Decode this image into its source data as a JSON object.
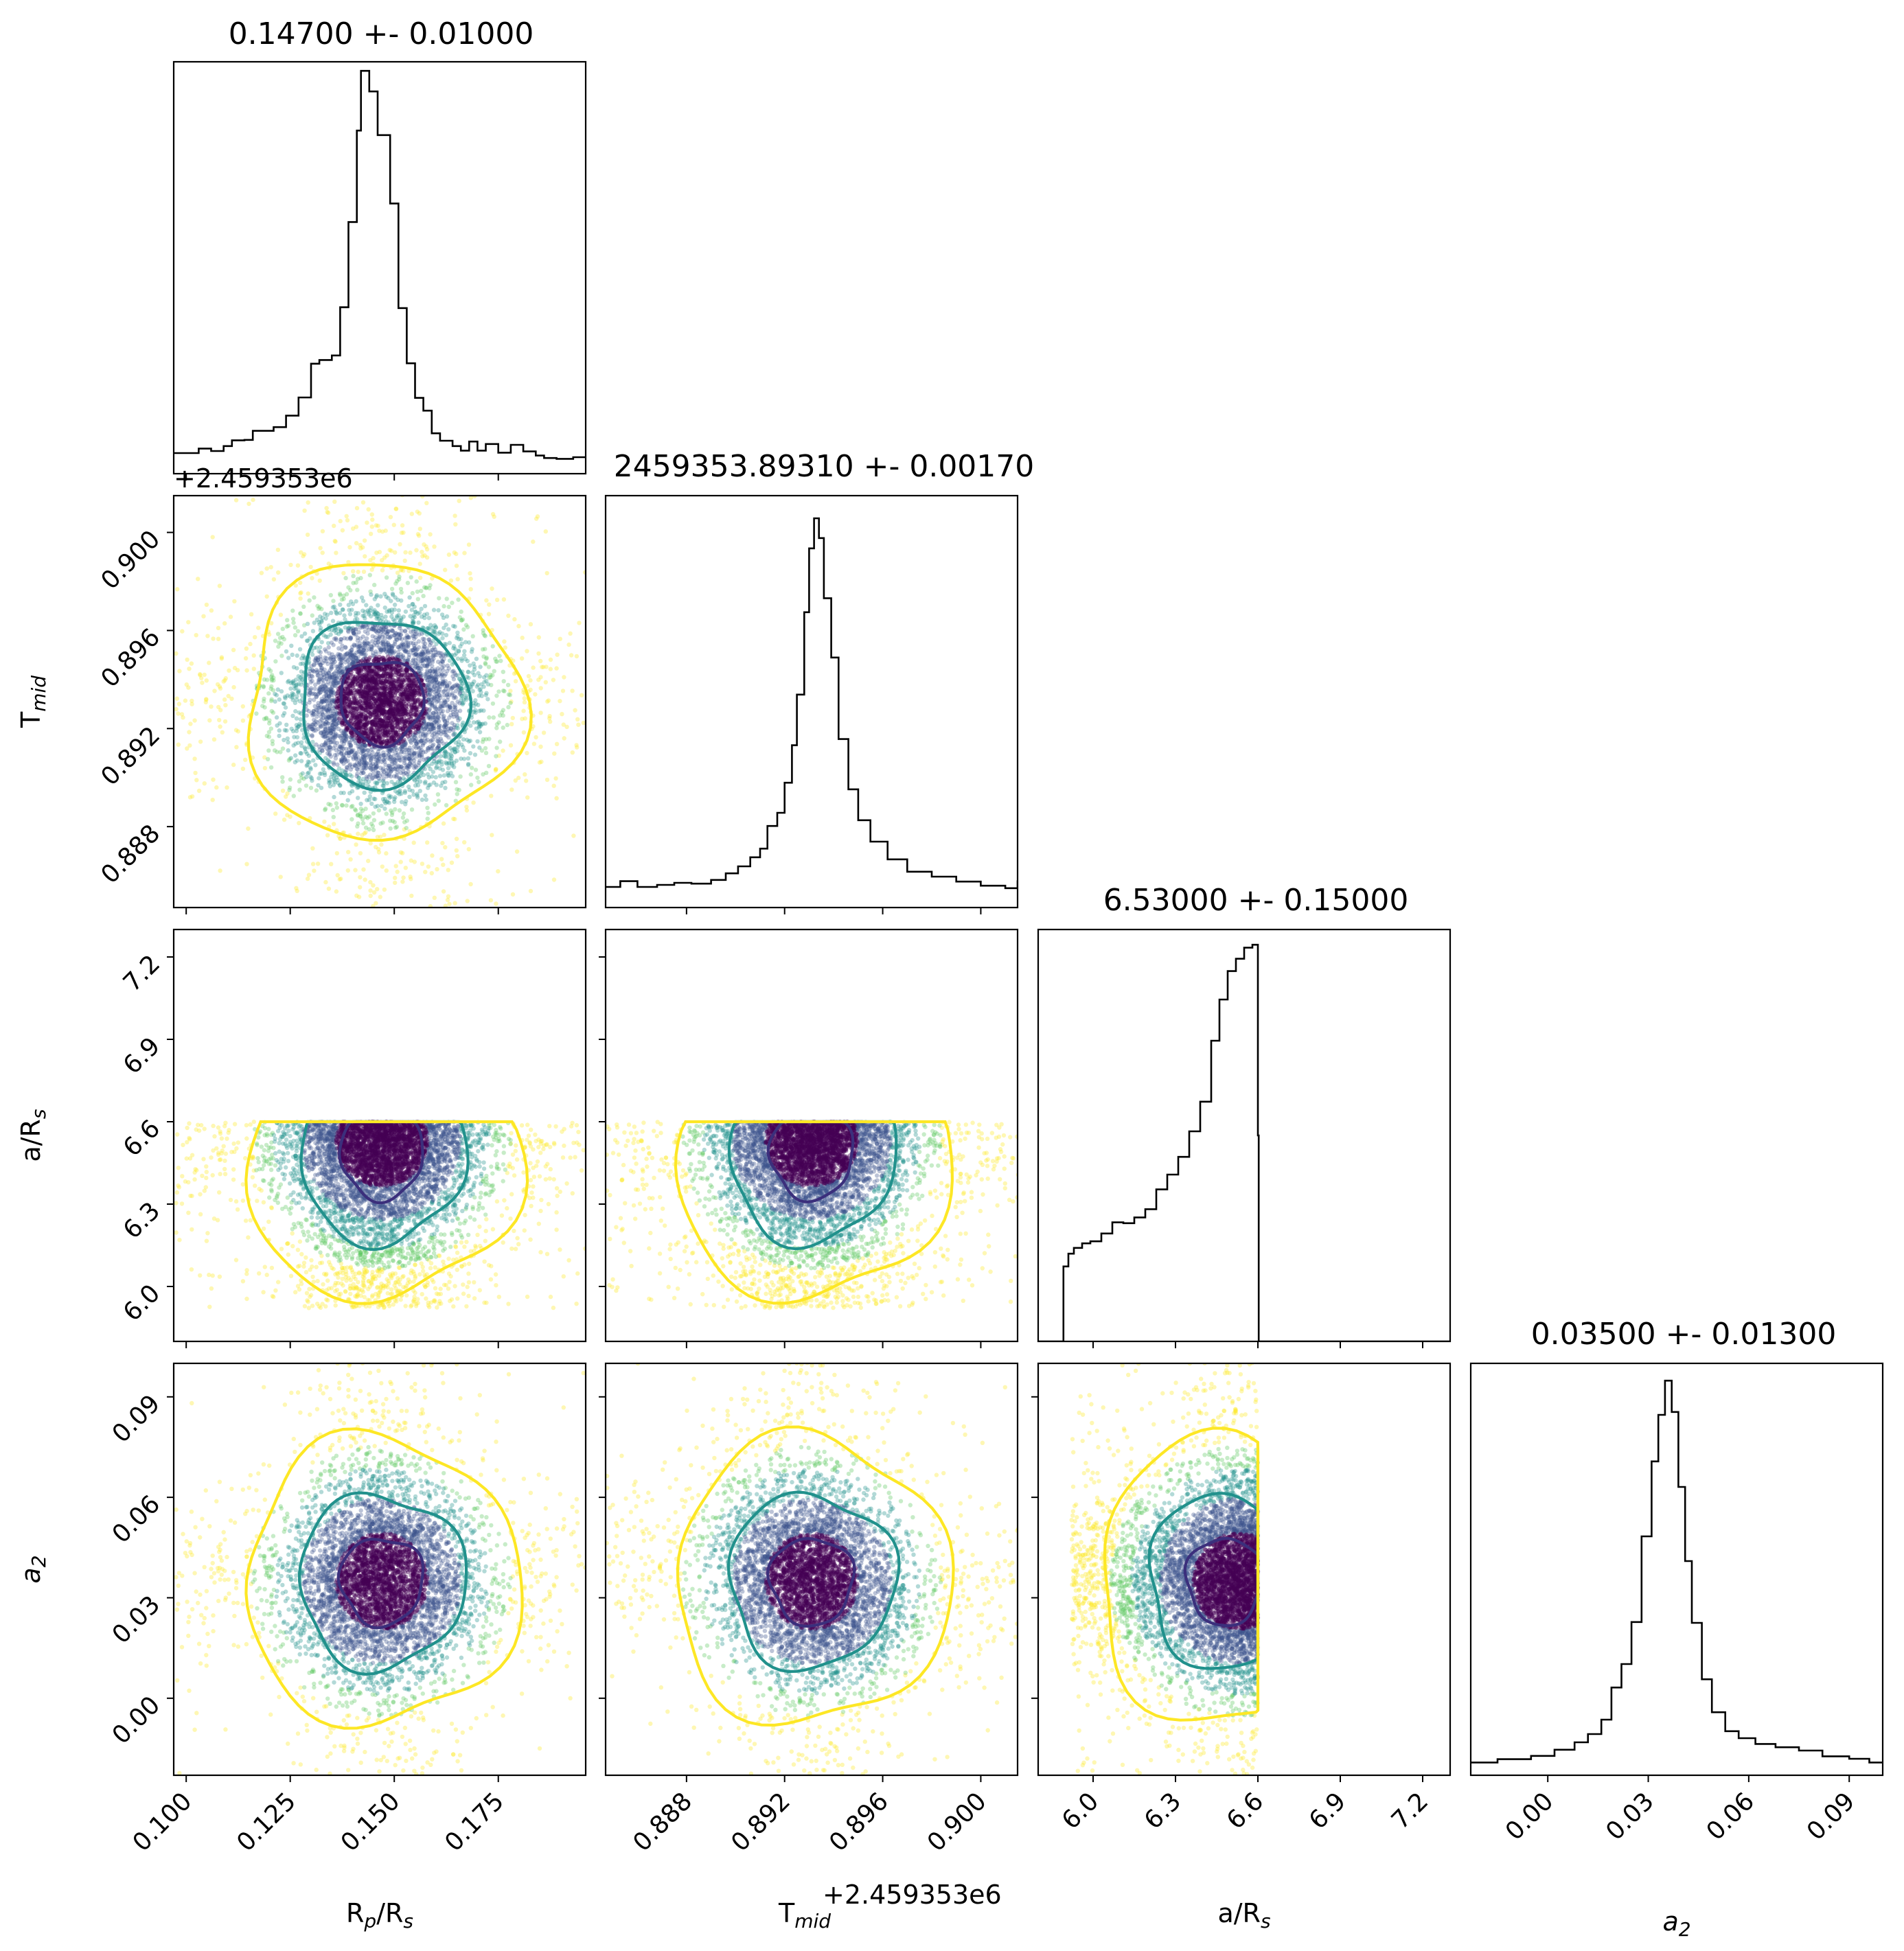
{
  "chart_data": {
    "type": "corner",
    "parameters": [
      {
        "key": "rp",
        "label": "R$_p$/R$_s$",
        "label_main": "R",
        "label_sub": "p",
        "label_rest": "/R",
        "label_sub2": "s",
        "range": [
          0.097,
          0.196
        ],
        "ticks": [
          0.1,
          0.125,
          0.15,
          0.175
        ],
        "tick_labels": [
          "0.100",
          "0.125",
          "0.150",
          "0.175"
        ],
        "title": "0.14700 +- 0.01000",
        "mean": 0.147,
        "std": 0.01,
        "offset_label": ""
      },
      {
        "key": "tmid",
        "label": "T$_{mid}$",
        "label_main": "T",
        "label_sub": "mid",
        "label_rest": "",
        "label_sub2": "",
        "range": [
          0.8847,
          0.9015
        ],
        "ticks": [
          0.888,
          0.892,
          0.896,
          0.9
        ],
        "tick_labels": [
          "0.888",
          "0.892",
          "0.896",
          "0.900"
        ],
        "title": "2459353.89310 +- 0.00170",
        "mean": 0.8931,
        "std": 0.0017,
        "offset_label": "+2.459353e6"
      },
      {
        "key": "ars",
        "label": "a/R$_s$",
        "label_main": "a/R",
        "label_sub": "s",
        "label_rest": "",
        "label_sub2": "",
        "range": [
          5.8,
          7.3
        ],
        "ticks": [
          6.0,
          6.3,
          6.6,
          6.9,
          7.2
        ],
        "tick_labels": [
          "6.0",
          "6.3",
          "6.6",
          "6.9",
          "7.2"
        ],
        "title": "6.53000 +- 0.15000",
        "mean": 6.53,
        "std": 0.15,
        "offset_label": ""
      },
      {
        "key": "a2",
        "label": "a$_2$",
        "label_main": "a",
        "label_sub": "2",
        "label_rest": "",
        "label_sub2": "",
        "italic": true,
        "range": [
          -0.023,
          0.1
        ],
        "ticks": [
          0.0,
          0.03,
          0.06,
          0.09
        ],
        "tick_labels": [
          "0.00",
          "0.03",
          "0.06",
          "0.09"
        ],
        "title": "0.03500 +- 0.01300",
        "mean": 0.035,
        "std": 0.013,
        "offset_label": ""
      }
    ],
    "histograms": {
      "rp": [
        [
          0.097,
          0.05
        ],
        [
          0.1,
          0.05
        ],
        [
          0.103,
          0.061
        ],
        [
          0.106,
          0.055
        ],
        [
          0.109,
          0.067
        ],
        [
          0.111,
          0.081
        ],
        [
          0.114,
          0.082
        ],
        [
          0.116,
          0.104
        ],
        [
          0.119,
          0.104
        ],
        [
          0.121,
          0.113
        ],
        [
          0.124,
          0.141
        ],
        [
          0.127,
          0.185
        ],
        [
          0.13,
          0.267
        ],
        [
          0.132,
          0.276
        ],
        [
          0.135,
          0.287
        ],
        [
          0.137,
          0.404
        ],
        [
          0.139,
          0.611
        ],
        [
          0.141,
          0.833
        ],
        [
          0.142,
          0.978
        ],
        [
          0.144,
          0.928
        ],
        [
          0.146,
          0.822
        ],
        [
          0.149,
          0.656
        ],
        [
          0.151,
          0.402
        ],
        [
          0.153,
          0.268
        ],
        [
          0.155,
          0.184
        ],
        [
          0.157,
          0.153
        ],
        [
          0.159,
          0.098
        ],
        [
          0.161,
          0.08
        ],
        [
          0.164,
          0.067
        ],
        [
          0.166,
          0.056
        ],
        [
          0.168,
          0.078
        ],
        [
          0.17,
          0.056
        ],
        [
          0.172,
          0.072
        ],
        [
          0.175,
          0.051
        ],
        [
          0.178,
          0.07
        ],
        [
          0.181,
          0.054
        ],
        [
          0.184,
          0.044
        ],
        [
          0.186,
          0.038
        ],
        [
          0.189,
          0.036
        ],
        [
          0.193,
          0.04
        ],
        [
          0.196,
          0.04
        ]
      ],
      "tmid": [
        [
          0.8847,
          0.05
        ],
        [
          0.8853,
          0.064
        ],
        [
          0.886,
          0.05
        ],
        [
          0.8868,
          0.055
        ],
        [
          0.8875,
          0.06
        ],
        [
          0.8882,
          0.058
        ],
        [
          0.889,
          0.067
        ],
        [
          0.8896,
          0.083
        ],
        [
          0.8901,
          0.1
        ],
        [
          0.8906,
          0.122
        ],
        [
          0.891,
          0.143
        ],
        [
          0.8913,
          0.198
        ],
        [
          0.8917,
          0.23
        ],
        [
          0.892,
          0.303
        ],
        [
          0.8923,
          0.394
        ],
        [
          0.8925,
          0.517
        ],
        [
          0.8928,
          0.717
        ],
        [
          0.893,
          0.872
        ],
        [
          0.8932,
          0.945
        ],
        [
          0.8934,
          0.897
        ],
        [
          0.8936,
          0.751
        ],
        [
          0.8939,
          0.607
        ],
        [
          0.8942,
          0.409
        ],
        [
          0.8946,
          0.287
        ],
        [
          0.895,
          0.212
        ],
        [
          0.8955,
          0.16
        ],
        [
          0.8962,
          0.117
        ],
        [
          0.897,
          0.087
        ],
        [
          0.898,
          0.075
        ],
        [
          0.899,
          0.063
        ],
        [
          0.9,
          0.053
        ],
        [
          0.901,
          0.047
        ],
        [
          0.9015,
          0.066
        ]
      ],
      "ars": [
        [
          5.8,
          0.0
        ],
        [
          5.89,
          0.0
        ],
        [
          5.892,
          0.182
        ],
        [
          5.91,
          0.213
        ],
        [
          5.93,
          0.227
        ],
        [
          5.96,
          0.238
        ],
        [
          5.99,
          0.243
        ],
        [
          6.03,
          0.262
        ],
        [
          6.07,
          0.289
        ],
        [
          6.11,
          0.287
        ],
        [
          6.15,
          0.301
        ],
        [
          6.19,
          0.321
        ],
        [
          6.23,
          0.369
        ],
        [
          6.27,
          0.405
        ],
        [
          6.31,
          0.448
        ],
        [
          6.35,
          0.51
        ],
        [
          6.39,
          0.582
        ],
        [
          6.43,
          0.73
        ],
        [
          6.46,
          0.83
        ],
        [
          6.49,
          0.899
        ],
        [
          6.52,
          0.929
        ],
        [
          6.55,
          0.956
        ],
        [
          6.58,
          0.963
        ],
        [
          6.6,
          0.5
        ],
        [
          6.603,
          0.0
        ],
        [
          7.3,
          0.0
        ]
      ],
      "a2": [
        [
          -0.023,
          0.031
        ],
        [
          -0.015,
          0.039
        ],
        [
          -0.005,
          0.047
        ],
        [
          0.002,
          0.062
        ],
        [
          0.008,
          0.08
        ],
        [
          0.012,
          0.1
        ],
        [
          0.016,
          0.135
        ],
        [
          0.019,
          0.213
        ],
        [
          0.022,
          0.27
        ],
        [
          0.025,
          0.372
        ],
        [
          0.028,
          0.58
        ],
        [
          0.031,
          0.762
        ],
        [
          0.033,
          0.875
        ],
        [
          0.035,
          0.958
        ],
        [
          0.037,
          0.882
        ],
        [
          0.039,
          0.7
        ],
        [
          0.041,
          0.52
        ],
        [
          0.043,
          0.37
        ],
        [
          0.046,
          0.233
        ],
        [
          0.049,
          0.153
        ],
        [
          0.053,
          0.107
        ],
        [
          0.057,
          0.09
        ],
        [
          0.062,
          0.076
        ],
        [
          0.068,
          0.068
        ],
        [
          0.075,
          0.06
        ],
        [
          0.082,
          0.046
        ],
        [
          0.09,
          0.04
        ],
        [
          0.096,
          0.031
        ],
        [
          0.1,
          0.031
        ]
      ]
    },
    "scatter": {
      "point_colors": [
        "#440154",
        "#3b528b",
        "#21918c",
        "#5ec962",
        "#fde725"
      ],
      "contour_colors": [
        "#3b2f7c",
        "#21918c",
        "#fde725"
      ],
      "ars_upper_cut": 6.6,
      "ars_lower_cut": 5.92,
      "sample_count": 5200,
      "correlation_tmid_a2": -0.15
    },
    "offset_texts": [
      "+2.459353e6",
      "+2.459353e6"
    ],
    "grid": false,
    "legend": "none"
  }
}
